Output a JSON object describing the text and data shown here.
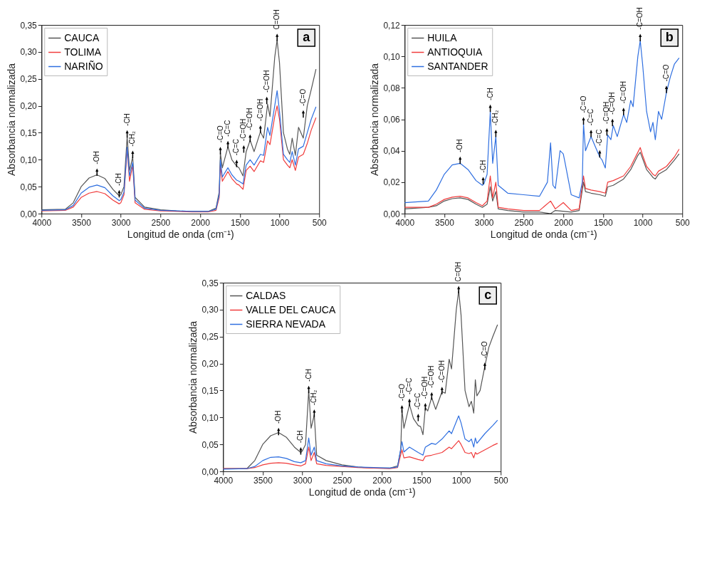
{
  "chart_data": [
    {
      "type": "line",
      "xlabel": "Longitud de onda (cm⁻¹)",
      "ylabel": "Absorbancia normalizada",
      "legend": "top left",
      "line_style": "solid",
      "xlim": [
        4000,
        500
      ],
      "xticks": [
        4000,
        3500,
        3000,
        2500,
        2000,
        1500,
        1000,
        500
      ],
      "ylim": [
        0,
        0.35
      ],
      "yticks": [
        {
          "value": 0,
          "label": "0,00"
        },
        {
          "value": 0.05,
          "label": "0,05"
        },
        {
          "value": 0.1,
          "label": "0,10"
        },
        {
          "value": 0.15,
          "label": "0,15"
        },
        {
          "value": 0.2,
          "label": "0,20"
        },
        {
          "value": 0.25,
          "label": "0,25"
        },
        {
          "value": 0.3,
          "label": "0,30"
        },
        {
          "value": 0.35,
          "label": "0,35"
        }
      ],
      "series": [
        {
          "name": "CAUCA",
          "color": "#555555",
          "x": [
            4000,
            3700,
            3600,
            3500,
            3400,
            3300,
            3200,
            3100,
            3020,
            3000,
            2960,
            2920,
            2890,
            2850,
            2820,
            2700,
            2500,
            2300,
            2100,
            1900,
            1800,
            1760,
            1745,
            1720,
            1650,
            1600,
            1540,
            1510,
            1460,
            1420,
            1370,
            1320,
            1240,
            1200,
            1150,
            1120,
            1060,
            1030,
            1000,
            950,
            900,
            870,
            840,
            800,
            760,
            700,
            650,
            600,
            540
          ],
          "values": [
            0.007,
            0.008,
            0.02,
            0.05,
            0.066,
            0.072,
            0.065,
            0.045,
            0.033,
            0.035,
            0.05,
            0.143,
            0.08,
            0.105,
            0.03,
            0.012,
            0.007,
            0.005,
            0.004,
            0.004,
            0.01,
            0.04,
            0.112,
            0.085,
            0.124,
            0.1,
            0.088,
            0.085,
            0.07,
            0.115,
            0.136,
            0.115,
            0.152,
            0.14,
            0.203,
            0.18,
            0.29,
            0.322,
            0.28,
            0.15,
            0.12,
            0.11,
            0.14,
            0.108,
            0.16,
            0.14,
            0.2,
            0.23,
            0.268
          ]
        },
        {
          "name": "TOLIMA",
          "color": "#f03c3c",
          "x": [
            4000,
            3700,
            3600,
            3500,
            3400,
            3300,
            3200,
            3100,
            3020,
            3000,
            2960,
            2920,
            2890,
            2850,
            2820,
            2700,
            2500,
            2300,
            2100,
            1900,
            1800,
            1760,
            1745,
            1720,
            1650,
            1600,
            1540,
            1510,
            1460,
            1420,
            1370,
            1320,
            1240,
            1200,
            1150,
            1120,
            1060,
            1030,
            1000,
            950,
            900,
            870,
            840,
            800,
            760,
            700,
            650,
            600,
            540
          ],
          "values": [
            0.005,
            0.006,
            0.012,
            0.03,
            0.038,
            0.041,
            0.037,
            0.025,
            0.018,
            0.02,
            0.035,
            0.12,
            0.06,
            0.09,
            0.02,
            0.008,
            0.005,
            0.004,
            0.003,
            0.003,
            0.006,
            0.03,
            0.09,
            0.06,
            0.078,
            0.065,
            0.055,
            0.053,
            0.045,
            0.08,
            0.088,
            0.078,
            0.098,
            0.095,
            0.135,
            0.128,
            0.18,
            0.2,
            0.175,
            0.1,
            0.09,
            0.085,
            0.1,
            0.08,
            0.105,
            0.11,
            0.13,
            0.155,
            0.178
          ]
        },
        {
          "name": "NARIÑO",
          "color": "#2f6fe0",
          "x": [
            4000,
            3700,
            3600,
            3500,
            3400,
            3300,
            3200,
            3100,
            3020,
            3000,
            2960,
            2920,
            2890,
            2850,
            2820,
            2700,
            2500,
            2300,
            2100,
            1900,
            1800,
            1760,
            1745,
            1720,
            1650,
            1600,
            1540,
            1510,
            1460,
            1420,
            1370,
            1320,
            1240,
            1200,
            1150,
            1120,
            1060,
            1030,
            1000,
            950,
            900,
            870,
            840,
            800,
            760,
            700,
            650,
            600,
            540
          ],
          "values": [
            0.006,
            0.007,
            0.015,
            0.038,
            0.049,
            0.053,
            0.048,
            0.033,
            0.024,
            0.026,
            0.04,
            0.123,
            0.07,
            0.095,
            0.025,
            0.01,
            0.006,
            0.005,
            0.004,
            0.004,
            0.008,
            0.035,
            0.1,
            0.068,
            0.085,
            0.072,
            0.062,
            0.06,
            0.055,
            0.09,
            0.1,
            0.09,
            0.11,
            0.108,
            0.16,
            0.145,
            0.2,
            0.228,
            0.19,
            0.11,
            0.1,
            0.095,
            0.115,
            0.09,
            0.12,
            0.125,
            0.15,
            0.175,
            0.198
          ]
        }
      ],
      "annotations": [
        "a",
        {
          "text": "-OH",
          "x": 3300,
          "y": 0.077
        },
        {
          "text": "-CH",
          "x": 3020,
          "y": 0.037
        },
        {
          "text": "-CH",
          "x": 2920,
          "y": 0.148
        },
        {
          "text": "-CH₂",
          "x": 2850,
          "y": 0.11
        },
        {
          "text": "-C=O",
          "x": 1745,
          "y": 0.117
        },
        {
          "text": "-C=C",
          "x": 1650,
          "y": 0.128
        },
        {
          "text": "-C=C",
          "x": 1540,
          "y": 0.093
        },
        {
          "text": "-C=OH",
          "x": 1450,
          "y": 0.12
        },
        {
          "text": "-C=OH",
          "x": 1370,
          "y": 0.14
        },
        {
          "text": "-C=OH",
          "x": 1240,
          "y": 0.157
        },
        {
          "text": "-C=OH",
          "x": 1160,
          "y": 0.21
        },
        {
          "text": "C=OH",
          "x": 1030,
          "y": 0.327
        },
        {
          "text": "-C=O",
          "x": 700,
          "y": 0.185
        }
      ]
    },
    {
      "type": "line",
      "xlabel": "Longitud de onda (cm⁻¹)",
      "ylabel": "Absorbancia normalizada",
      "legend": "top left",
      "line_style": "solid",
      "xlim": [
        4000,
        500
      ],
      "xticks": [
        4000,
        3500,
        3000,
        2500,
        2000,
        1500,
        1000,
        500
      ],
      "ylim": [
        0,
        0.12
      ],
      "yticks": [
        {
          "value": 0,
          "label": "0,00"
        },
        {
          "value": 0.02,
          "label": "0,02"
        },
        {
          "value": 0.04,
          "label": "0,04"
        },
        {
          "value": 0.06,
          "label": "0,06"
        },
        {
          "value": 0.08,
          "label": "0,08"
        },
        {
          "value": 0.1,
          "label": "0,10"
        },
        {
          "value": 0.12,
          "label": "0,12"
        }
      ],
      "series": [
        {
          "name": "HUILA",
          "color": "#555555",
          "x": [
            4000,
            3700,
            3600,
            3500,
            3400,
            3300,
            3200,
            3100,
            3020,
            2960,
            2920,
            2890,
            2850,
            2820,
            2700,
            2500,
            2300,
            2160,
            2100,
            1900,
            1800,
            1745,
            1720,
            1650,
            1540,
            1470,
            1440,
            1370,
            1240,
            1150,
            1060,
            1030,
            1000,
            950,
            900,
            870,
            840,
            800,
            700,
            600,
            540
          ],
          "values": [
            0.003,
            0.004,
            0.005,
            0.008,
            0.0095,
            0.01,
            0.009,
            0.006,
            0.004,
            0.006,
            0.017,
            0.008,
            0.014,
            0.003,
            0.002,
            0.001,
            0.001,
            0.0,
            0.002,
            0.001,
            0.002,
            0.02,
            0.014,
            0.013,
            0.012,
            0.011,
            0.017,
            0.018,
            0.022,
            0.028,
            0.037,
            0.039,
            0.035,
            0.028,
            0.025,
            0.023,
            0.022,
            0.025,
            0.028,
            0.034,
            0.038
          ]
        },
        {
          "name": "ANTIOQUIA",
          "color": "#f03c3c",
          "x": [
            4000,
            3700,
            3600,
            3500,
            3400,
            3300,
            3200,
            3100,
            3020,
            2960,
            2920,
            2890,
            2850,
            2820,
            2700,
            2500,
            2300,
            2160,
            2100,
            2000,
            1900,
            1800,
            1745,
            1720,
            1650,
            1540,
            1470,
            1440,
            1370,
            1240,
            1150,
            1060,
            1030,
            1000,
            950,
            900,
            870,
            840,
            800,
            700,
            600,
            540
          ],
          "values": [
            0.004,
            0.004,
            0.006,
            0.009,
            0.0105,
            0.011,
            0.01,
            0.007,
            0.005,
            0.008,
            0.024,
            0.01,
            0.02,
            0.004,
            0.003,
            0.002,
            0.002,
            0.008,
            0.003,
            0.007,
            0.002,
            0.003,
            0.024,
            0.016,
            0.015,
            0.014,
            0.013,
            0.02,
            0.021,
            0.024,
            0.03,
            0.039,
            0.042,
            0.037,
            0.03,
            0.027,
            0.025,
            0.024,
            0.027,
            0.03,
            0.036,
            0.041
          ]
        },
        {
          "name": "SANTANDER",
          "color": "#2f6fe0",
          "x": [
            4000,
            3700,
            3600,
            3500,
            3400,
            3300,
            3200,
            3100,
            3020,
            3000,
            2960,
            2920,
            2890,
            2850,
            2820,
            2700,
            2500,
            2300,
            2200,
            2160,
            2130,
            2100,
            2040,
            2000,
            1980,
            1900,
            1800,
            1760,
            1745,
            1720,
            1650,
            1600,
            1540,
            1510,
            1470,
            1440,
            1400,
            1370,
            1320,
            1240,
            1200,
            1150,
            1120,
            1060,
            1030,
            1000,
            950,
            900,
            870,
            840,
            800,
            760,
            700,
            650,
            600,
            540
          ],
          "values": [
            0.007,
            0.008,
            0.015,
            0.025,
            0.031,
            0.032,
            0.028,
            0.021,
            0.018,
            0.019,
            0.025,
            0.065,
            0.032,
            0.049,
            0.018,
            0.013,
            0.012,
            0.011,
            0.02,
            0.045,
            0.018,
            0.016,
            0.04,
            0.038,
            0.033,
            0.012,
            0.01,
            0.02,
            0.057,
            0.04,
            0.049,
            0.043,
            0.036,
            0.034,
            0.029,
            0.05,
            0.047,
            0.056,
            0.049,
            0.063,
            0.058,
            0.072,
            0.068,
            0.1,
            0.11,
            0.095,
            0.065,
            0.052,
            0.058,
            0.047,
            0.065,
            0.06,
            0.077,
            0.087,
            0.095,
            0.099
          ]
        }
      ],
      "annotations": [
        "b",
        {
          "text": "-OH",
          "x": 3300,
          "y": 0.034
        },
        {
          "text": "-CH",
          "x": 3010,
          "y": 0.021
        },
        {
          "text": "-CH",
          "x": 2920,
          "y": 0.067
        },
        {
          "text": "-CH₂",
          "x": 2850,
          "y": 0.051
        },
        {
          "text": "-C=O",
          "x": 1745,
          "y": 0.059
        },
        {
          "text": "-C=C",
          "x": 1650,
          "y": 0.051
        },
        {
          "text": "-C=C",
          "x": 1540,
          "y": 0.038
        },
        {
          "text": "-C=OH",
          "x": 1450,
          "y": 0.052
        },
        {
          "text": "-C=OH",
          "x": 1380,
          "y": 0.058
        },
        {
          "text": "-C=OH",
          "x": 1240,
          "y": 0.065
        },
        {
          "text": "-C=OH",
          "x": 1030,
          "y": 0.112
        },
        {
          "text": "-C=O",
          "x": 700,
          "y": 0.079
        }
      ]
    },
    {
      "type": "line",
      "xlabel": "Longitud de onda (cm⁻¹)",
      "ylabel": "Absorbancia normalizada",
      "legend": "top left",
      "line_style": "solid",
      "xlim": [
        4000,
        500
      ],
      "xticks": [
        4000,
        3500,
        3000,
        2500,
        2000,
        1500,
        1000,
        500
      ],
      "ylim": [
        0,
        0.35
      ],
      "yticks": [
        {
          "value": 0,
          "label": "0,00"
        },
        {
          "value": 0.05,
          "label": "0,05"
        },
        {
          "value": 0.1,
          "label": "0,10"
        },
        {
          "value": 0.15,
          "label": "0,15"
        },
        {
          "value": 0.2,
          "label": "0,20"
        },
        {
          "value": 0.25,
          "label": "0,25"
        },
        {
          "value": 0.3,
          "label": "0,30"
        },
        {
          "value": 0.35,
          "label": "0,35"
        }
      ],
      "series": [
        {
          "name": "CALDAS",
          "color": "#555555",
          "x": [
            4000,
            3700,
            3600,
            3500,
            3400,
            3300,
            3200,
            3100,
            3020,
            3000,
            2960,
            2920,
            2890,
            2850,
            2820,
            2700,
            2500,
            2300,
            2100,
            1900,
            1800,
            1760,
            1745,
            1720,
            1650,
            1600,
            1540,
            1510,
            1480,
            1450,
            1420,
            1370,
            1320,
            1240,
            1200,
            1150,
            1120,
            1060,
            1030,
            1000,
            950,
            900,
            870,
            840,
            820,
            800,
            760,
            700,
            650,
            600,
            540
          ],
          "values": [
            0.005,
            0.005,
            0.02,
            0.05,
            0.066,
            0.072,
            0.063,
            0.045,
            0.035,
            0.038,
            0.05,
            0.15,
            0.08,
            0.105,
            0.03,
            0.02,
            0.012,
            0.008,
            0.006,
            0.006,
            0.01,
            0.04,
            0.115,
            0.08,
            0.124,
            0.098,
            0.085,
            0.083,
            0.068,
            0.118,
            0.112,
            0.137,
            0.115,
            0.148,
            0.145,
            0.208,
            0.19,
            0.3,
            0.335,
            0.29,
            0.15,
            0.12,
            0.13,
            0.108,
            0.17,
            0.14,
            0.15,
            0.195,
            0.23,
            0.25,
            0.272
          ]
        },
        {
          "name": "VALLE DEL CAUCA",
          "color": "#f03c3c",
          "x": [
            4000,
            3700,
            3600,
            3500,
            3400,
            3300,
            3200,
            3100,
            3020,
            2960,
            2920,
            2890,
            2850,
            2820,
            2700,
            2500,
            2300,
            2100,
            1900,
            1800,
            1745,
            1720,
            1650,
            1540,
            1480,
            1450,
            1370,
            1240,
            1150,
            1120,
            1060,
            1030,
            1000,
            950,
            900,
            870,
            840,
            820,
            800,
            700,
            600,
            540
          ],
          "values": [
            0.005,
            0.005,
            0.007,
            0.012,
            0.015,
            0.016,
            0.015,
            0.012,
            0.01,
            0.014,
            0.045,
            0.02,
            0.035,
            0.014,
            0.011,
            0.009,
            0.007,
            0.006,
            0.005,
            0.007,
            0.04,
            0.025,
            0.027,
            0.022,
            0.02,
            0.028,
            0.03,
            0.035,
            0.045,
            0.042,
            0.052,
            0.057,
            0.05,
            0.035,
            0.033,
            0.035,
            0.025,
            0.035,
            0.032,
            0.04,
            0.048,
            0.052
          ]
        },
        {
          "name": "SIERRA NEVADA",
          "color": "#2f6fe0",
          "x": [
            4000,
            3700,
            3600,
            3500,
            3400,
            3300,
            3200,
            3100,
            3020,
            2960,
            2920,
            2890,
            2850,
            2820,
            2700,
            2500,
            2300,
            2100,
            1900,
            1800,
            1745,
            1720,
            1650,
            1540,
            1480,
            1450,
            1370,
            1320,
            1240,
            1150,
            1120,
            1060,
            1030,
            1000,
            950,
            900,
            870,
            840,
            820,
            800,
            700,
            600,
            540
          ],
          "values": [
            0.004,
            0.005,
            0.009,
            0.02,
            0.026,
            0.027,
            0.024,
            0.018,
            0.016,
            0.02,
            0.062,
            0.03,
            0.045,
            0.02,
            0.014,
            0.01,
            0.008,
            0.007,
            0.006,
            0.008,
            0.055,
            0.036,
            0.045,
            0.035,
            0.03,
            0.045,
            0.052,
            0.05,
            0.06,
            0.075,
            0.07,
            0.092,
            0.103,
            0.09,
            0.06,
            0.055,
            0.06,
            0.045,
            0.062,
            0.052,
            0.07,
            0.085,
            0.095
          ]
        }
      ],
      "annotations": [
        "c",
        {
          "text": "-OH",
          "x": 3300,
          "y": 0.074
        },
        {
          "text": "-CH",
          "x": 3020,
          "y": 0.038
        },
        {
          "text": "-CH",
          "x": 2920,
          "y": 0.152
        },
        {
          "text": "-CH₂",
          "x": 2850,
          "y": 0.108
        },
        {
          "text": "-C=O",
          "x": 1745,
          "y": 0.116
        },
        {
          "text": "-C=C",
          "x": 1650,
          "y": 0.128
        },
        {
          "text": "-C=C",
          "x": 1540,
          "y": 0.1
        },
        {
          "text": "-C=OH",
          "x": 1450,
          "y": 0.12
        },
        {
          "text": "-C=OH",
          "x": 1370,
          "y": 0.14
        },
        {
          "text": "-C=OH",
          "x": 1240,
          "y": 0.15
        },
        {
          "text": "C=OH",
          "x": 1030,
          "y": 0.337
        },
        {
          "text": "-C=O",
          "x": 700,
          "y": 0.195
        }
      ]
    }
  ]
}
